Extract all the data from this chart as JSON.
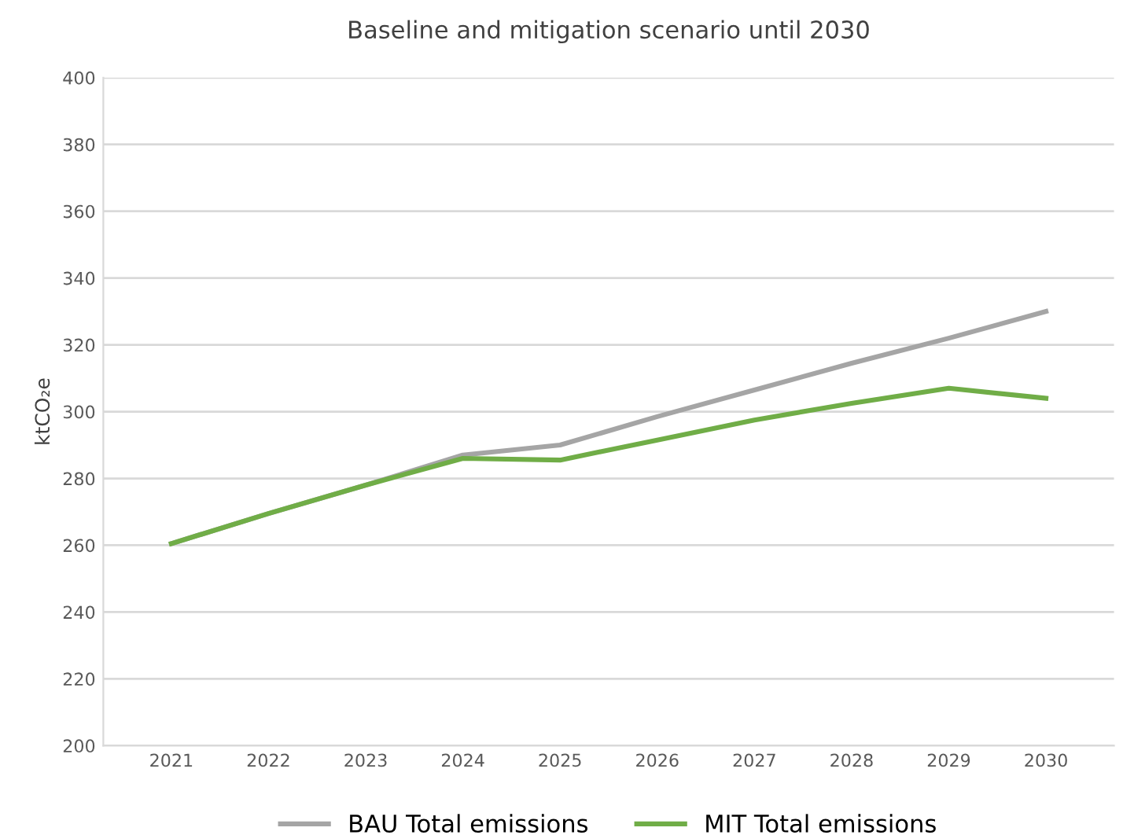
{
  "chart_data": {
    "type": "line",
    "title": "Baseline and mitigation scenario until 2030",
    "ylabel": "ktCO₂e",
    "categories": [
      "2021",
      "2022",
      "2023",
      "2024",
      "2025",
      "2026",
      "2027",
      "2028",
      "2029",
      "2030"
    ],
    "series": [
      {
        "name": "BAU Total emissions",
        "color": "#a5a5a5",
        "values": [
          260.5,
          269.5,
          278,
          287,
          290,
          298.5,
          306.5,
          314.5,
          322,
          330
        ]
      },
      {
        "name": "MIT Total emissions",
        "color": "#70ad47",
        "values": [
          260.5,
          269.5,
          278,
          286,
          285.5,
          291.5,
          297.5,
          302.5,
          307,
          304
        ]
      }
    ],
    "ylim": [
      200,
      400
    ],
    "yticks": [
      200,
      220,
      240,
      260,
      280,
      300,
      320,
      340,
      360,
      380,
      400
    ],
    "grid": "y",
    "legend": "bottom",
    "marker": "none",
    "line_style": "solid"
  }
}
